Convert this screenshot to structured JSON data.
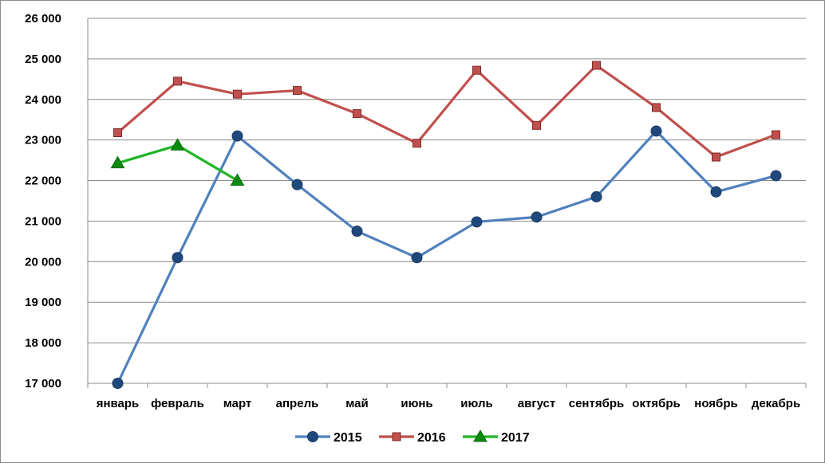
{
  "chart_data": {
    "type": "line",
    "categories": [
      "январь",
      "февраль",
      "март",
      "апрель",
      "май",
      "июнь",
      "июль",
      "август",
      "сентябрь",
      "октябрь",
      "ноябрь",
      "декабрь"
    ],
    "ylim": [
      17000,
      26000
    ],
    "yticks": [
      17000,
      18000,
      19000,
      20000,
      21000,
      22000,
      23000,
      24000,
      25000,
      26000
    ],
    "ytick_labels": [
      "17 000",
      "18 000",
      "19 000",
      "20 000",
      "21 000",
      "22 000",
      "23 000",
      "24 000",
      "25 000",
      "26 000"
    ],
    "grid": true,
    "legend_position": "bottom",
    "series": [
      {
        "name": "2015",
        "color": "#4f81bd",
        "marker": "circle",
        "values": [
          17000,
          20100,
          23100,
          21900,
          20750,
          20100,
          20980,
          21100,
          21600,
          23220,
          21720,
          22120
        ]
      },
      {
        "name": "2016",
        "color": "#c0504d",
        "marker": "square",
        "values": [
          23180,
          24450,
          24130,
          24220,
          23650,
          22920,
          24720,
          23360,
          24840,
          23800,
          22580,
          23130
        ]
      },
      {
        "name": "2017",
        "color": "#1fb524",
        "marker": "triangle",
        "values": [
          22430,
          22870,
          22000,
          null,
          null,
          null,
          null,
          null,
          null,
          null,
          null,
          null
        ]
      }
    ]
  }
}
